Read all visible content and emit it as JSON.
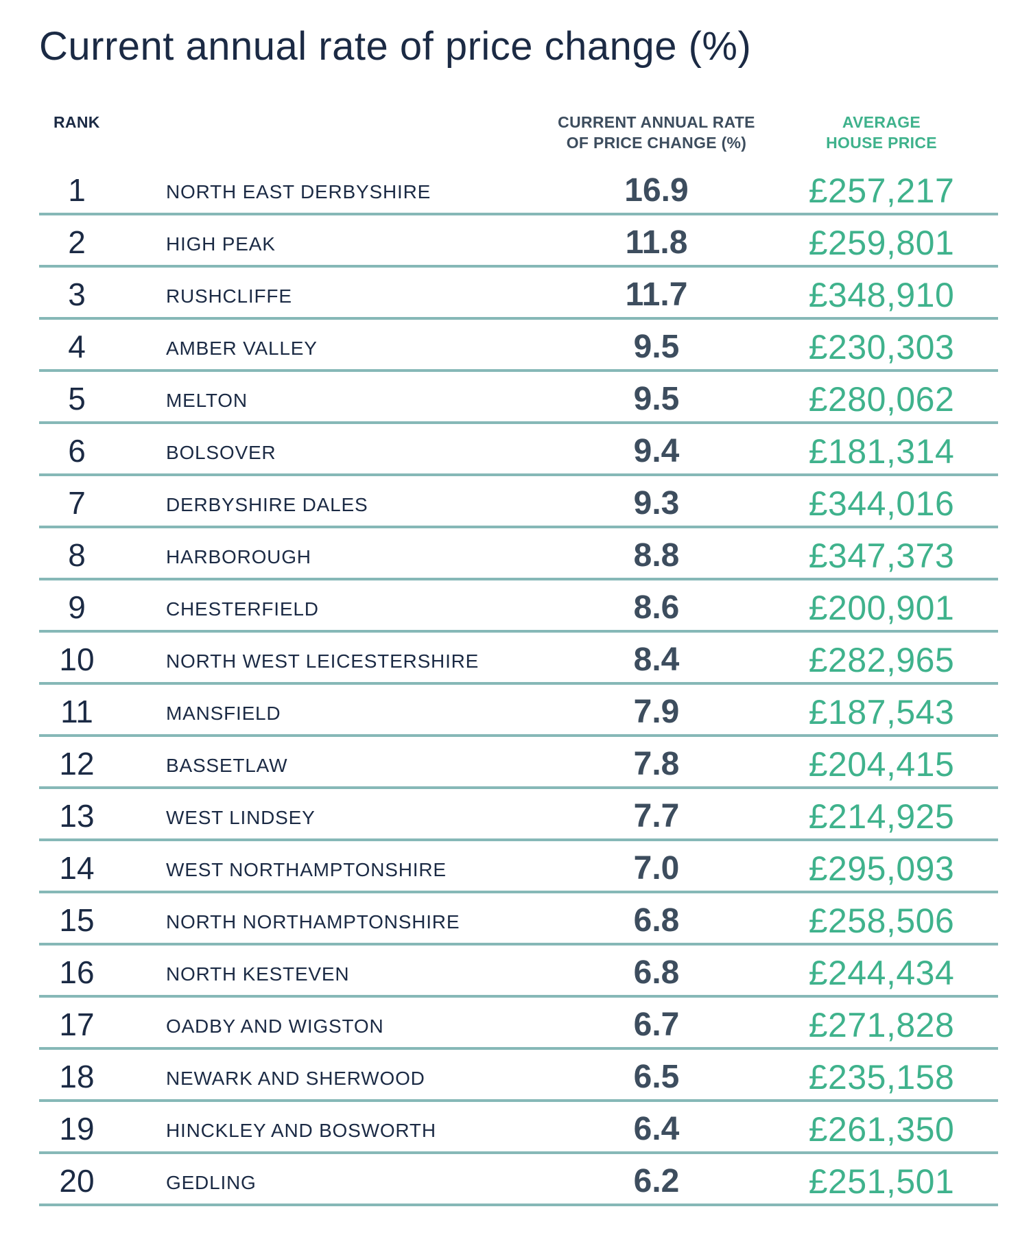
{
  "title": "Current annual rate of price change (%)",
  "headers": {
    "rank": "RANK",
    "rate_line1": "CURRENT ANNUAL RATE",
    "rate_line2": "OF PRICE CHANGE (%)",
    "price_line1": "AVERAGE",
    "price_line2": "HOUSE PRICE"
  },
  "colors": {
    "navy": "#1b2a44",
    "slate": "#3d4d5e",
    "green": "#3fb28c",
    "rule": "#86b8b7"
  },
  "rows": [
    {
      "rank": "1",
      "name": "NORTH EAST DERBYSHIRE",
      "rate": "16.9",
      "price": "£257,217"
    },
    {
      "rank": "2",
      "name": "HIGH PEAK",
      "rate": "11.8",
      "price": "£259,801"
    },
    {
      "rank": "3",
      "name": "RUSHCLIFFE",
      "rate": "11.7",
      "price": "£348,910"
    },
    {
      "rank": "4",
      "name": "AMBER VALLEY",
      "rate": "9.5",
      "price": "£230,303"
    },
    {
      "rank": "5",
      "name": "MELTON",
      "rate": "9.5",
      "price": "£280,062"
    },
    {
      "rank": "6",
      "name": "BOLSOVER",
      "rate": "9.4",
      "price": "£181,314"
    },
    {
      "rank": "7",
      "name": "DERBYSHIRE DALES",
      "rate": "9.3",
      "price": "£344,016"
    },
    {
      "rank": "8",
      "name": "HARBOROUGH",
      "rate": "8.8",
      "price": "£347,373"
    },
    {
      "rank": "9",
      "name": "CHESTERFIELD",
      "rate": "8.6",
      "price": "£200,901"
    },
    {
      "rank": "10",
      "name": "NORTH WEST LEICESTERSHIRE",
      "rate": "8.4",
      "price": "£282,965"
    },
    {
      "rank": "11",
      "name": "MANSFIELD",
      "rate": "7.9",
      "price": "£187,543"
    },
    {
      "rank": "12",
      "name": "BASSETLAW",
      "rate": "7.8",
      "price": "£204,415"
    },
    {
      "rank": "13",
      "name": "WEST LINDSEY",
      "rate": "7.7",
      "price": "£214,925"
    },
    {
      "rank": "14",
      "name": "WEST NORTHAMPTONSHIRE",
      "rate": "7.0",
      "price": "£295,093"
    },
    {
      "rank": "15",
      "name": "NORTH NORTHAMPTONSHIRE",
      "rate": "6.8",
      "price": "£258,506"
    },
    {
      "rank": "16",
      "name": "NORTH KESTEVEN",
      "rate": "6.8",
      "price": "£244,434"
    },
    {
      "rank": "17",
      "name": "OADBY AND WIGSTON",
      "rate": "6.7",
      "price": "£271,828"
    },
    {
      "rank": "18",
      "name": "NEWARK AND SHERWOOD",
      "rate": "6.5",
      "price": "£235,158"
    },
    {
      "rank": "19",
      "name": "HINCKLEY AND BOSWORTH",
      "rate": "6.4",
      "price": "£261,350"
    },
    {
      "rank": "20",
      "name": "GEDLING",
      "rate": "6.2",
      "price": "£251,501"
    }
  ]
}
